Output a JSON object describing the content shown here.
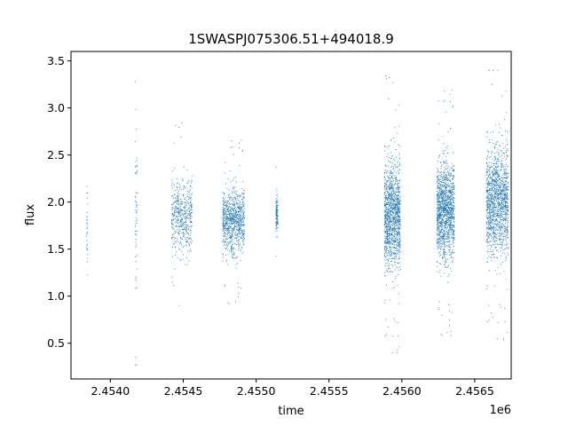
{
  "chart_data": {
    "type": "scatter",
    "title": "1SWASPJ075306.51+494018.9",
    "xlabel": "time",
    "ylabel": "flux",
    "x_offset_label": "1e6",
    "x_tick_labels": [
      "2.4540",
      "2.4545",
      "2.4550",
      "2.4555",
      "2.4560",
      "2.4565"
    ],
    "x_tick_values": [
      2454000,
      2454500,
      2455000,
      2455500,
      2456000,
      2456500
    ],
    "y_tick_labels": [
      "0.5",
      "1.0",
      "1.5",
      "2.0",
      "2.5",
      "3.0",
      "3.5"
    ],
    "y_tick_values": [
      0.5,
      1.0,
      1.5,
      2.0,
      2.5,
      3.0,
      3.5
    ],
    "xlim": [
      2453730,
      2456750
    ],
    "ylim": [
      0.12,
      3.6
    ],
    "grid": false,
    "marker_color": "#1f77b4",
    "observing_seasons": [
      {
        "x_start": 2453835,
        "x_end": 2453845,
        "y_center": 1.7,
        "y_spread": 0.5,
        "points": 30
      },
      {
        "x_start": 2454170,
        "x_end": 2454185,
        "y_center": 1.9,
        "y_spread": 0.8,
        "points": 60
      },
      {
        "x_start": 2454420,
        "x_end": 2454560,
        "y_center": 1.85,
        "y_spread": 0.35,
        "points": 500
      },
      {
        "x_start": 2454770,
        "x_end": 2454920,
        "y_center": 1.8,
        "y_spread": 0.3,
        "points": 900
      },
      {
        "x_start": 2455135,
        "x_end": 2455150,
        "y_center": 1.85,
        "y_spread": 0.2,
        "points": 120
      },
      {
        "x_start": 2455880,
        "x_end": 2455990,
        "y_center": 1.85,
        "y_spread": 0.5,
        "points": 1300
      },
      {
        "x_start": 2456240,
        "x_end": 2456360,
        "y_center": 1.9,
        "y_spread": 0.45,
        "points": 1400
      },
      {
        "x_start": 2456580,
        "x_end": 2456730,
        "y_center": 2.0,
        "y_spread": 0.5,
        "points": 1400
      }
    ]
  }
}
